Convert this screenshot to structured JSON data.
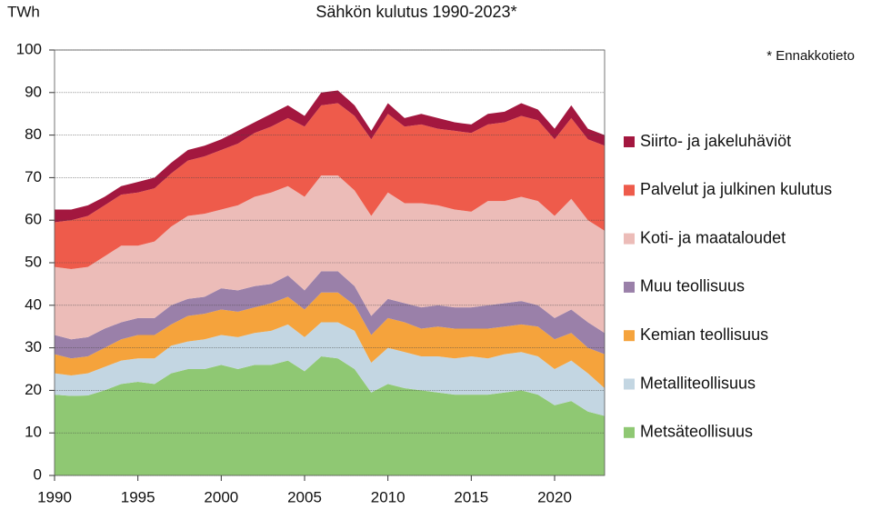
{
  "chart_data": {
    "type": "stacked_area",
    "title": "Sähkön kulutus 1990-2023*",
    "y_label": "TWh",
    "annotation": "* Ennakkotieto",
    "x": [
      1990,
      1991,
      1992,
      1993,
      1994,
      1995,
      1996,
      1997,
      1998,
      1999,
      2000,
      2001,
      2002,
      2003,
      2004,
      2005,
      2006,
      2007,
      2008,
      2009,
      2010,
      2011,
      2012,
      2013,
      2014,
      2015,
      2016,
      2017,
      2018,
      2019,
      2020,
      2021,
      2022,
      2023
    ],
    "xlim": [
      1990,
      2023
    ],
    "xticks": [
      1990,
      1995,
      2000,
      2005,
      2010,
      2015,
      2020
    ],
    "ylim": [
      0,
      100
    ],
    "yticks": [
      0,
      10,
      20,
      30,
      40,
      50,
      60,
      70,
      80,
      90,
      100
    ],
    "grid": true,
    "legend": "right",
    "series": [
      {
        "name": "Metsäteollisuus",
        "color": "#8fc873",
        "values": [
          19,
          18.7,
          18.8,
          20,
          21.5,
          22,
          21.5,
          24,
          25,
          25,
          26,
          25,
          26,
          26,
          27,
          24.5,
          28,
          27.5,
          25,
          19.5,
          21.5,
          20.5,
          20,
          19.5,
          19,
          19,
          19,
          19.5,
          20,
          19,
          16.5,
          17.5,
          15,
          14
        ]
      },
      {
        "name": "Metalliteollisuus",
        "color": "#c3d6e2",
        "values": [
          5,
          4.8,
          5.2,
          5.5,
          5.5,
          5.5,
          6,
          6.5,
          6.5,
          7,
          7,
          7.5,
          7.5,
          8,
          8.5,
          8,
          8,
          8.5,
          9,
          7,
          8.5,
          8.5,
          8,
          8.5,
          8.5,
          9,
          8.5,
          9,
          9,
          9,
          8.5,
          9.5,
          9,
          6.5
        ]
      },
      {
        "name": "Kemian teollisuus",
        "color": "#f5a33c",
        "values": [
          4.5,
          4,
          4,
          4.5,
          5,
          5.5,
          5.5,
          5,
          6,
          6,
          6,
          6,
          6,
          6.5,
          6.5,
          6.5,
          7,
          7,
          6,
          6.5,
          7,
          7,
          6.5,
          7,
          7,
          6.5,
          7,
          6.5,
          6.5,
          7,
          7,
          6.5,
          6,
          8
        ]
      },
      {
        "name": "Muu teollisuus",
        "color": "#9a80a9",
        "values": [
          4.5,
          4.5,
          4.5,
          4.5,
          4,
          4,
          4,
          4.5,
          4,
          4,
          5,
          5,
          5,
          4.5,
          5,
          4.5,
          5,
          5,
          4.5,
          4.5,
          4.5,
          4.5,
          5,
          5,
          5,
          5,
          5.5,
          5.5,
          5.5,
          5,
          5,
          5.5,
          6,
          5
        ]
      },
      {
        "name": "Koti- ja maataloudet",
        "color": "#ecbcb8",
        "values": [
          16,
          16.5,
          16.5,
          17,
          18,
          17,
          18,
          18.5,
          19.5,
          19.5,
          18.5,
          20,
          21,
          21.5,
          21,
          22,
          22.5,
          22.5,
          22.5,
          23.5,
          25,
          23.5,
          24.5,
          23.5,
          23,
          22.5,
          24.5,
          24,
          24.5,
          24.5,
          24,
          26,
          24,
          24
        ]
      },
      {
        "name": "Palvelut ja julkinen kulutus",
        "color": "#ee5b4b",
        "values": [
          10.5,
          11.5,
          12,
          12,
          12,
          12.5,
          12.5,
          12.5,
          13,
          13.5,
          14,
          14.5,
          15,
          15.5,
          16,
          16.5,
          16.5,
          17,
          17.5,
          18,
          18.5,
          18,
          18.5,
          18,
          18.5,
          18.5,
          18,
          18.5,
          19,
          19,
          18,
          19,
          19,
          20
        ]
      },
      {
        "name": "Siirto- ja jakeluhäviöt",
        "color": "#a3173f",
        "values": [
          3,
          2.5,
          2.5,
          2,
          2,
          2.5,
          2.5,
          2.5,
          2.5,
          2.5,
          2.5,
          3,
          2.5,
          3,
          3,
          2.5,
          3,
          3,
          2.5,
          2,
          2.5,
          2,
          2.5,
          2.5,
          2,
          2,
          2.5,
          2.5,
          3,
          2.5,
          2.5,
          3,
          2.5,
          2.5
        ]
      }
    ]
  }
}
